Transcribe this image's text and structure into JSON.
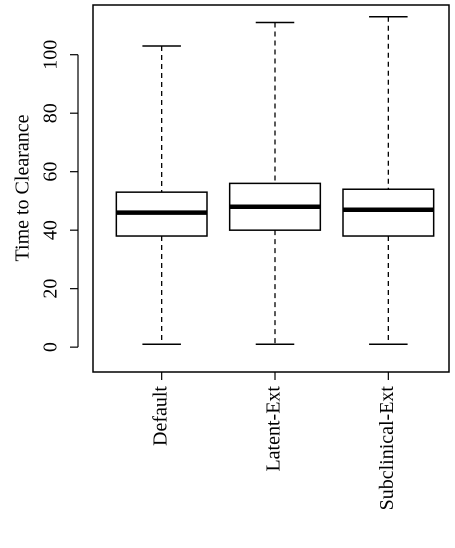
{
  "chart_data": {
    "type": "boxplot",
    "ylabel": "Time to Clearance",
    "categories": [
      "Default",
      "Latent-Ext",
      "Subclinical-Ext"
    ],
    "boxes": [
      {
        "min": 1,
        "q1": 38,
        "median": 46,
        "q3": 53,
        "max": 103
      },
      {
        "min": 1,
        "q1": 40,
        "median": 48,
        "q3": 56,
        "max": 111
      },
      {
        "min": 1,
        "q1": 38,
        "median": 47,
        "q3": 54,
        "max": 113
      }
    ],
    "color": "#000000",
    "ylim": [
      -8.5,
      117
    ],
    "yticks": [
      0,
      20,
      40,
      60,
      80,
      100
    ]
  }
}
